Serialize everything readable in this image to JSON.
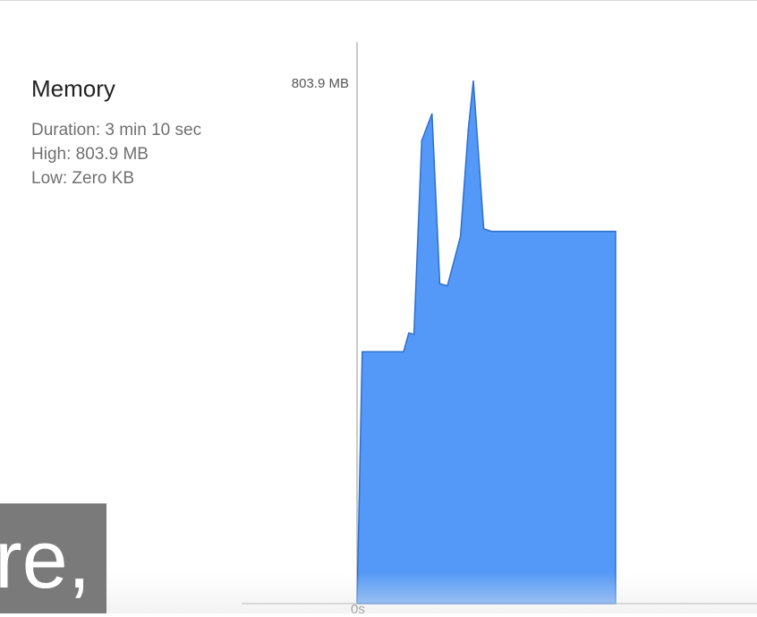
{
  "memory": {
    "title": "Memory",
    "duration": "Duration: 3 min 10 sec",
    "high": "High: 803.9 MB",
    "low": "Low: Zero KB"
  },
  "chart_data": {
    "type": "area",
    "title": "Memory",
    "xlabel": "",
    "ylabel": "",
    "y_max_label": "803.9 MB",
    "x_start_label": "0s",
    "ylim": [
      0,
      803.9
    ],
    "unit": "MB",
    "series": [
      {
        "name": "Memory",
        "color": "#5499f7",
        "x": [
          0,
          0.02,
          0.18,
          0.2,
          0.22,
          0.25,
          0.29,
          0.32,
          0.35,
          0.4,
          0.43,
          0.45,
          0.49,
          0.52,
          0.54,
          0.57,
          0.62,
          1.0
        ],
        "values": [
          0,
          389,
          389,
          418,
          416,
          715,
          757,
          494,
          491,
          567,
          732,
          808,
          579,
          575,
          575,
          575,
          575,
          575
        ]
      }
    ]
  },
  "caption": {
    "text": "re,"
  },
  "colors": {
    "area_fill": "#5499f7",
    "area_stroke": "#2f6fcc",
    "axis": "#b8b8b8"
  }
}
